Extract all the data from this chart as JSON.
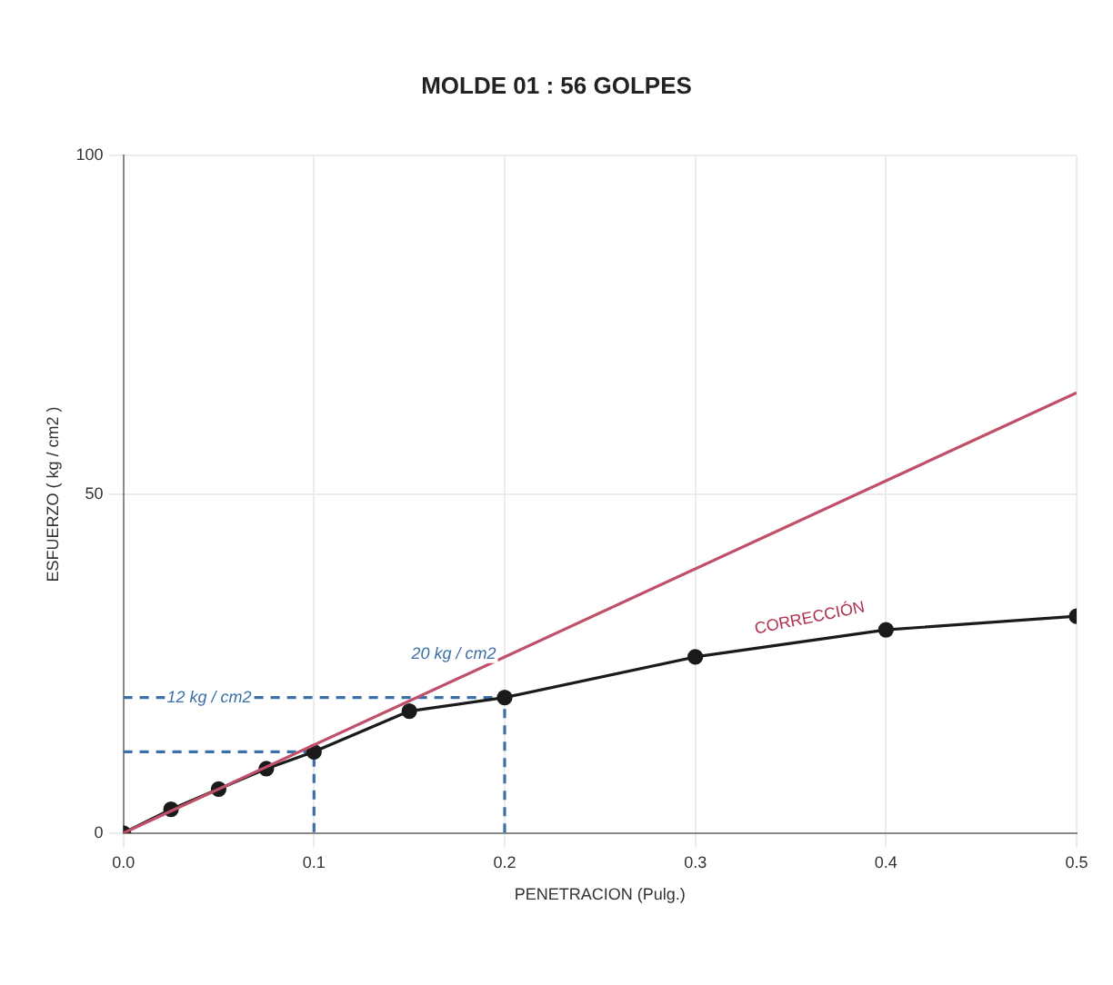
{
  "chart_data": {
    "type": "line",
    "title": "MOLDE 01 : 56 GOLPES",
    "xlabel": "PENETRACION (Pulg.)",
    "ylabel": "ESFUERZO ( kg / cm2 )",
    "xlim": [
      0,
      0.5
    ],
    "xticks": [
      {
        "value": 0,
        "label": "0.0"
      },
      0.1,
      0.2,
      0.3,
      0.4,
      0.5
    ],
    "ylim": [
      0,
      100
    ],
    "yticks": [
      0,
      50,
      100
    ],
    "grid": true,
    "marker": "circle",
    "series": [
      {
        "color": "#c0506a",
        "x": [
          0,
          0.5
        ],
        "values": [
          0,
          65
        ],
        "marker": "none"
      },
      {
        "color": "#1a1a1a",
        "x": [
          0,
          0.025,
          0.05,
          0.075,
          0.1,
          0.15,
          0.2,
          0.3,
          0.4,
          0.5
        ],
        "values": [
          0,
          3.5,
          6.5,
          9.5,
          12,
          18,
          20,
          26,
          30,
          32
        ]
      },
      {
        "color": "#3a6fa8",
        "x": [
          0,
          0.1,
          0.1
        ],
        "values": [
          12,
          12,
          0
        ],
        "marker": "none",
        "line_style": "dashed"
      },
      {
        "color": "#3a6fa8",
        "x": [
          0,
          0.2,
          0.2
        ],
        "values": [
          20,
          20,
          0
        ],
        "marker": "none",
        "line_style": "dashed"
      }
    ],
    "annotations": [
      {
        "text": "12 kg / cm2",
        "x": 0.045,
        "y": 20
      },
      {
        "text": "20 kg / cm2",
        "x": 0.2,
        "y": 20
      },
      {
        "text": "CORRECCIÓN",
        "x": 0.36,
        "y": 29
      }
    ]
  }
}
